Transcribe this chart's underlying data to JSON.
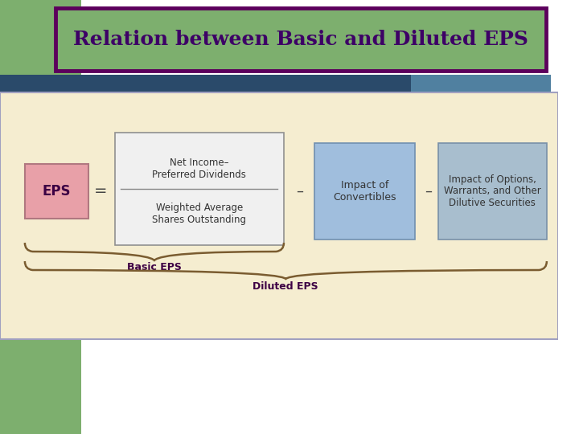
{
  "title": "Relation between Basic and Diluted EPS",
  "title_color": "#3D0066",
  "title_bg": "#7DAF6E",
  "title_border": "#5C005C",
  "slide_bg": "#FFFFFF",
  "green_bg": "#7DAF6E",
  "formula_bg": "#F5EDD0",
  "formula_border": "#A0A0C0",
  "eps_box_color": "#E8A0A8",
  "eps_box_border": "#B07880",
  "fraction_box_color": "#F0F0F0",
  "fraction_box_border": "#909090",
  "convertibles_box_color": "#A0BEDD",
  "convertibles_box_border": "#7090B0",
  "options_box_color": "#A8BECE",
  "options_box_border": "#7890A8",
  "text_dark": "#3D0044",
  "text_medium": "#333333",
  "brace_color": "#7A5C30",
  "eps_label": "EPS",
  "fraction_top": "Net Income–\nPreferred Dividends",
  "fraction_bottom": "Weighted Average\nShares Outstanding",
  "convertibles_label": "Impact of\nConvertibles",
  "options_label": "Impact of Options,\nWarrants, and Other\nDilutive Securities",
  "basic_eps_label": "Basic EPS",
  "diluted_eps_label": "Diluted EPS",
  "equals_sign": "=",
  "minus_sign1": "–",
  "minus_sign2": "–",
  "header_bar_color": "#2A4A6A",
  "header_bar_color2": "#5080A0"
}
